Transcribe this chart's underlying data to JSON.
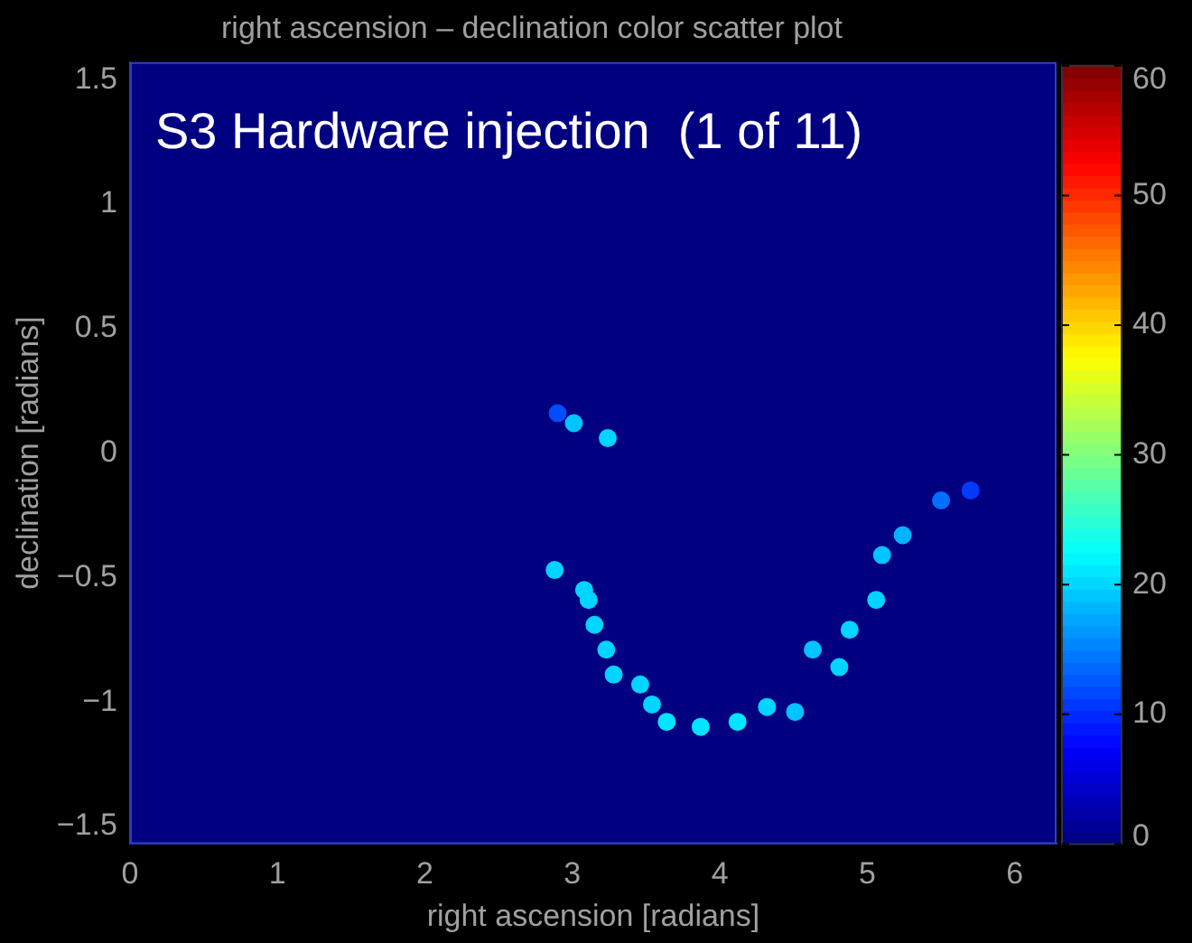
{
  "chart_data": {
    "type": "scatter",
    "title": "right ascension – declination color scatter plot",
    "xlabel": "right ascension [radians]",
    "ylabel": "declination [radians]",
    "annotations": [
      "S3 Hardware injection  (1 of 11)"
    ],
    "x": [
      2.9,
      3.01,
      3.24,
      2.88,
      3.08,
      3.11,
      3.15,
      3.23,
      3.28,
      3.46,
      3.54,
      3.64,
      3.87,
      4.12,
      4.32,
      4.51,
      4.81,
      4.63,
      4.88,
      5.06,
      5.1,
      5.24,
      5.5,
      5.7
    ],
    "values": [
      0.16,
      0.12,
      0.06,
      -0.47,
      -0.55,
      -0.59,
      -0.69,
      -0.79,
      -0.89,
      -0.93,
      -1.01,
      -1.08,
      -1.1,
      -1.08,
      -1.02,
      -1.04,
      -0.86,
      -0.79,
      -0.71,
      -0.59,
      -0.41,
      -0.33,
      -0.19,
      -0.15
    ],
    "cvalues": [
      12,
      19,
      20,
      20,
      20,
      20,
      20,
      20,
      20,
      20,
      20,
      21,
      21,
      21,
      20,
      19,
      20,
      19,
      20,
      20,
      19,
      18,
      14,
      11
    ],
    "xlim": [
      0,
      6.2832
    ],
    "xticks": [
      0,
      1,
      2,
      3,
      4,
      5,
      6
    ],
    "ylim": [
      -1.5708,
      1.5708
    ],
    "yticks": [
      -1.5,
      -1,
      -0.5,
      0,
      0.5,
      1,
      1.5
    ],
    "clim": [
      0,
      60
    ],
    "cticks": [
      0,
      10,
      20,
      30,
      40,
      50,
      60
    ],
    "marker": "circle",
    "grid": false,
    "legend": false
  }
}
